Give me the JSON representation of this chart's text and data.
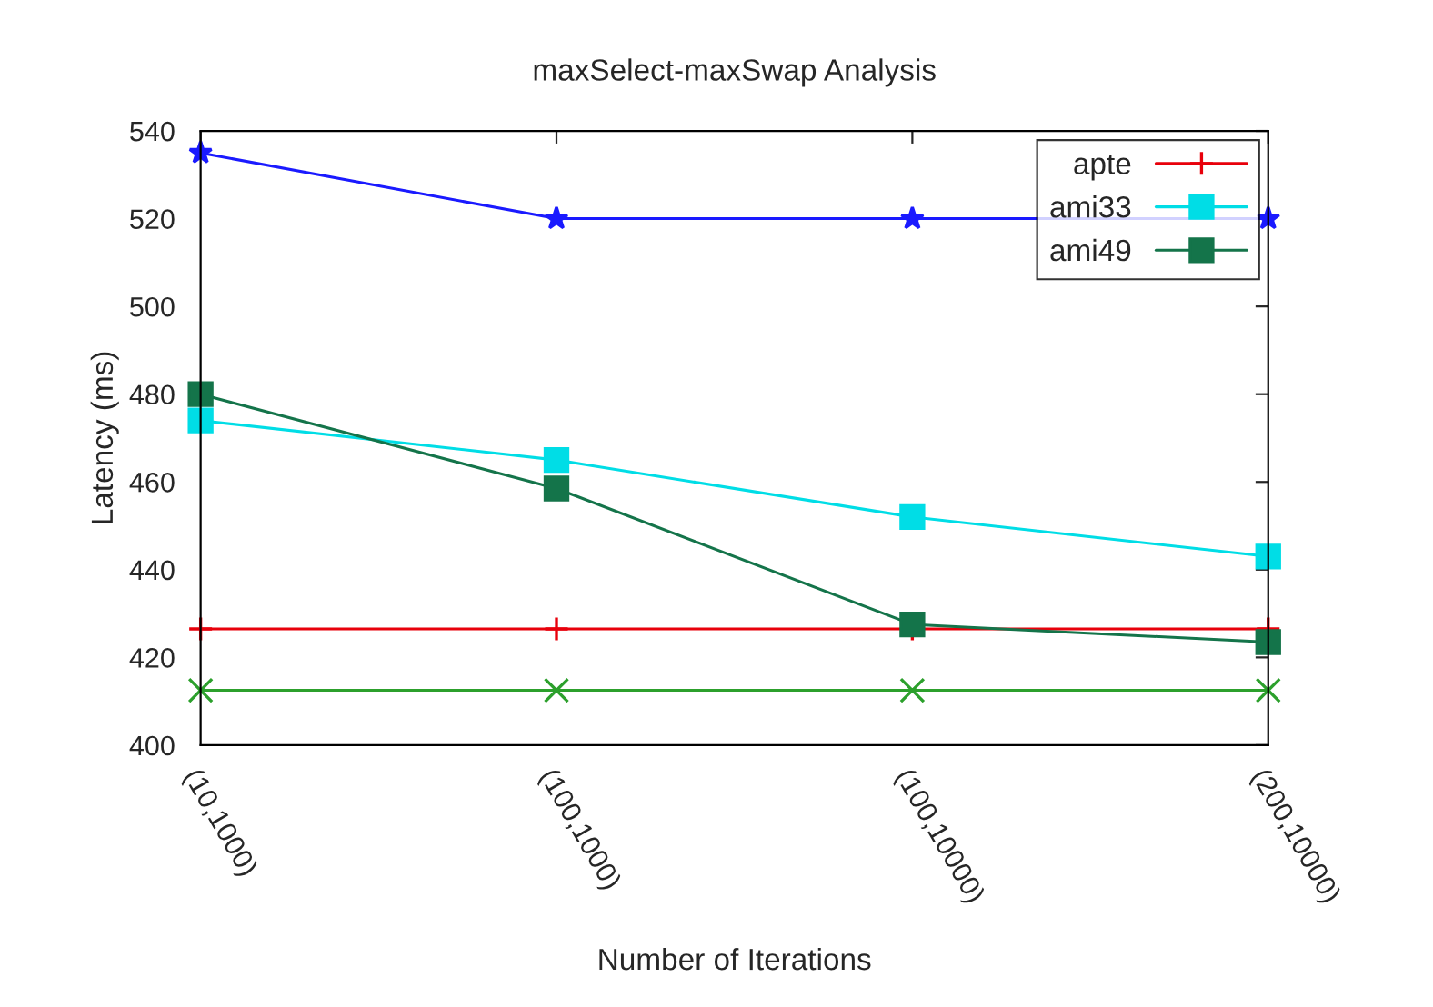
{
  "chart_data": {
    "type": "line",
    "title": "maxSelect-maxSwap Analysis",
    "xlabel": "Number of Iterations",
    "ylabel": "Latency (ms)",
    "categories": [
      "(10,1000)",
      "(100,1000)",
      "(100,10000)",
      "(200,10000)"
    ],
    "ylim": [
      400,
      540
    ],
    "yticks": [
      400,
      420,
      440,
      460,
      480,
      500,
      520,
      540
    ],
    "grid": false,
    "legend": "top right",
    "series": [
      {
        "name": "apte",
        "color": "#e8000b",
        "marker": "plus",
        "values": [
          426.5,
          426.5,
          426.5,
          426.5
        ]
      },
      {
        "color": "#2ca02c",
        "marker": "cross",
        "values": [
          412.5,
          412.5,
          412.5,
          412.5
        ]
      },
      {
        "color": "#1a1aff",
        "marker": "star",
        "values": [
          535,
          520,
          520,
          520
        ]
      },
      {
        "name": "ami33",
        "color": "#00dde6",
        "marker": "square",
        "values": [
          474,
          465,
          452,
          443
        ]
      },
      {
        "name": "ami49",
        "color": "#14744a",
        "marker": "square",
        "values": [
          480,
          458.5,
          427.5,
          423.5
        ]
      }
    ]
  }
}
